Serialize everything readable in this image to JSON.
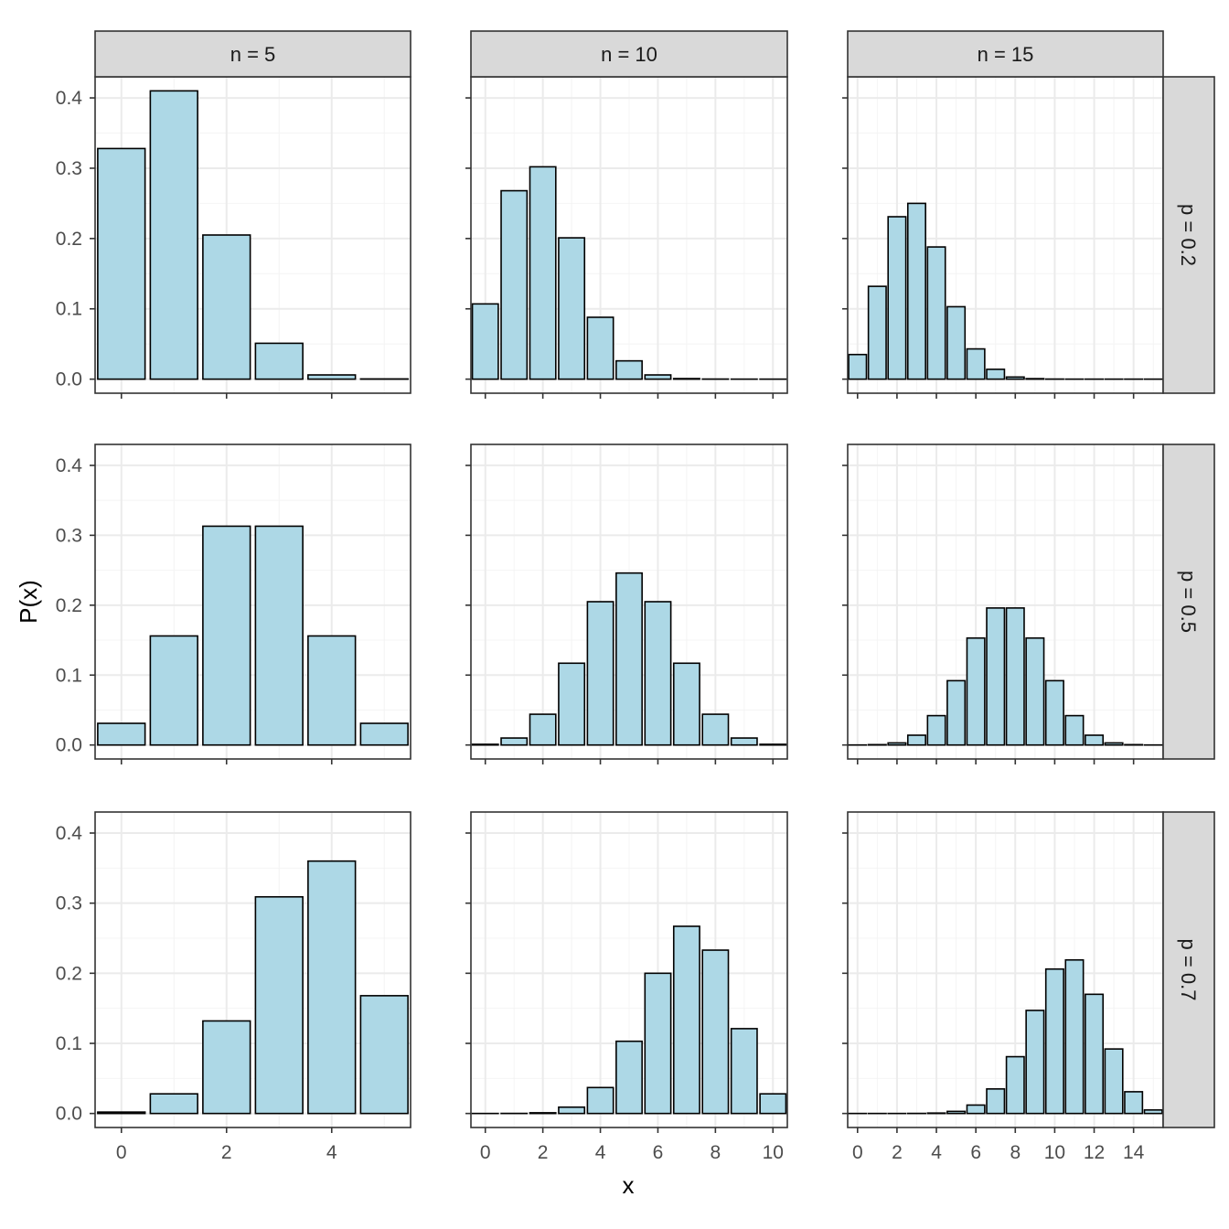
{
  "chart_data": {
    "type": "bar",
    "facet_layout": "grid",
    "xlabel": "x",
    "ylabel": "P(x)",
    "ylim": [
      -0.02,
      0.43
    ],
    "y_ticks": [
      "0.0",
      "0.1",
      "0.2",
      "0.3",
      "0.4"
    ],
    "y_tick_values": [
      0.0,
      0.1,
      0.2,
      0.3,
      0.4
    ],
    "minor_grid": true,
    "bar_fill": "#add8e6",
    "bar_stroke": "#000000",
    "strip_fill": "#d9d9d9",
    "grid_color": "#ebebeb",
    "columns": [
      {
        "label": "n = 5",
        "n": 5,
        "xlim": [
          -0.5,
          5.5
        ],
        "x_ticks": [
          "0",
          "2",
          "4"
        ],
        "x_tick_values": [
          0,
          2,
          4
        ]
      },
      {
        "label": "n = 10",
        "n": 10,
        "xlim": [
          -0.5,
          10.5
        ],
        "x_ticks": [
          "0",
          "2",
          "4",
          "6",
          "8",
          "10"
        ],
        "x_tick_values": [
          0,
          2,
          4,
          6,
          8,
          10
        ]
      },
      {
        "label": "n = 15",
        "n": 15,
        "xlim": [
          -0.5,
          15.5
        ],
        "x_ticks": [
          "0",
          "2",
          "4",
          "6",
          "8",
          "10",
          "12",
          "14"
        ],
        "x_tick_values": [
          0,
          2,
          4,
          6,
          8,
          10,
          12,
          14
        ]
      }
    ],
    "rows": [
      {
        "label": "p = 0.2",
        "p": 0.2
      },
      {
        "label": "p = 0.5",
        "p": 0.5
      },
      {
        "label": "p = 0.7",
        "p": 0.7
      }
    ],
    "panels": [
      {
        "row": 0,
        "col": 0,
        "x": [
          0,
          1,
          2,
          3,
          4,
          5
        ],
        "values": [
          0.328,
          0.41,
          0.205,
          0.051,
          0.006,
          0.0003
        ]
      },
      {
        "row": 0,
        "col": 1,
        "x": [
          0,
          1,
          2,
          3,
          4,
          5,
          6,
          7,
          8,
          9,
          10
        ],
        "values": [
          0.107,
          0.268,
          0.302,
          0.201,
          0.088,
          0.026,
          0.006,
          0.0008,
          0.0001,
          0.0,
          0.0
        ]
      },
      {
        "row": 0,
        "col": 2,
        "x": [
          0,
          1,
          2,
          3,
          4,
          5,
          6,
          7,
          8,
          9,
          10,
          11,
          12,
          13,
          14,
          15
        ],
        "values": [
          0.035,
          0.132,
          0.231,
          0.25,
          0.188,
          0.103,
          0.043,
          0.014,
          0.003,
          0.0007,
          0.0001,
          0.0,
          0.0,
          0.0,
          0.0,
          0.0
        ]
      },
      {
        "row": 1,
        "col": 0,
        "x": [
          0,
          1,
          2,
          3,
          4,
          5
        ],
        "values": [
          0.031,
          0.156,
          0.313,
          0.313,
          0.156,
          0.031
        ]
      },
      {
        "row": 1,
        "col": 1,
        "x": [
          0,
          1,
          2,
          3,
          4,
          5,
          6,
          7,
          8,
          9,
          10
        ],
        "values": [
          0.001,
          0.01,
          0.044,
          0.117,
          0.205,
          0.246,
          0.205,
          0.117,
          0.044,
          0.01,
          0.001
        ]
      },
      {
        "row": 1,
        "col": 2,
        "x": [
          0,
          1,
          2,
          3,
          4,
          5,
          6,
          7,
          8,
          9,
          10,
          11,
          12,
          13,
          14,
          15
        ],
        "values": [
          3e-05,
          0.0005,
          0.003,
          0.014,
          0.042,
          0.092,
          0.153,
          0.196,
          0.196,
          0.153,
          0.092,
          0.042,
          0.014,
          0.003,
          0.0005,
          3e-05
        ]
      },
      {
        "row": 2,
        "col": 0,
        "x": [
          0,
          1,
          2,
          3,
          4,
          5
        ],
        "values": [
          0.002,
          0.028,
          0.132,
          0.309,
          0.36,
          0.168
        ]
      },
      {
        "row": 2,
        "col": 1,
        "x": [
          0,
          1,
          2,
          3,
          4,
          5,
          6,
          7,
          8,
          9,
          10
        ],
        "values": [
          0.0,
          0.0001,
          0.001,
          0.009,
          0.037,
          0.103,
          0.2,
          0.267,
          0.233,
          0.121,
          0.028
        ]
      },
      {
        "row": 2,
        "col": 2,
        "x": [
          0,
          1,
          2,
          3,
          4,
          5,
          6,
          7,
          8,
          9,
          10,
          11,
          12,
          13,
          14,
          15
        ],
        "values": [
          0.0,
          0.0,
          0.0,
          0.0001,
          0.0006,
          0.003,
          0.012,
          0.035,
          0.081,
          0.147,
          0.206,
          0.219,
          0.17,
          0.092,
          0.031,
          0.005
        ]
      }
    ]
  }
}
